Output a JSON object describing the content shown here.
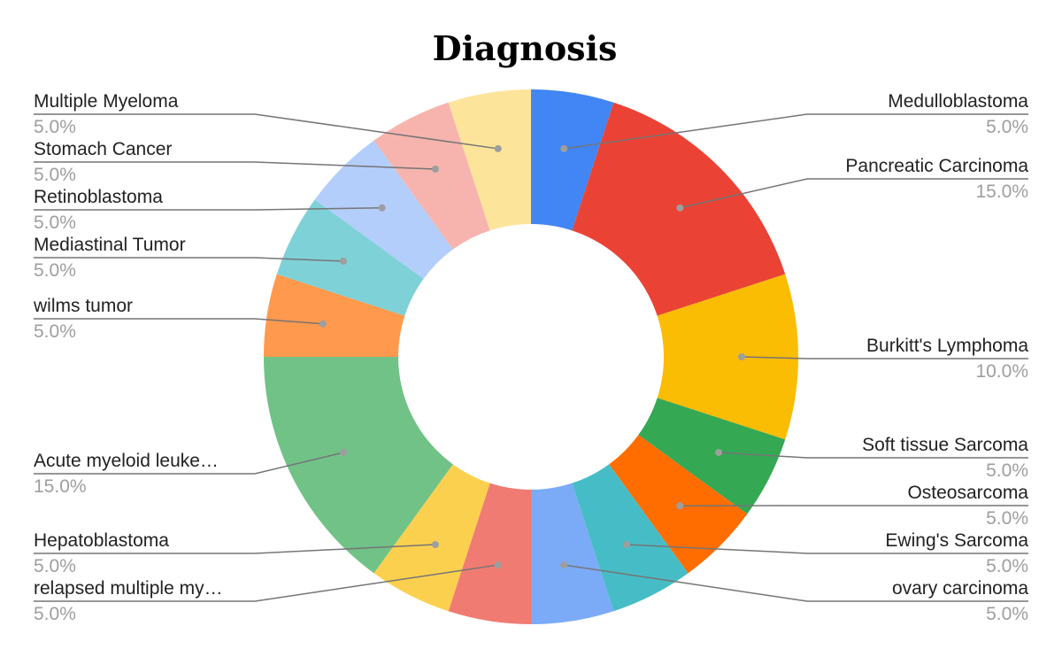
{
  "chart_data": {
    "type": "pie",
    "donut": true,
    "title": "Diagnosis",
    "slices": [
      {
        "label": "Medulloblastoma",
        "display": "Medulloblastoma",
        "value": 5.0,
        "pct_label": "5.0%",
        "color": "#4285f4"
      },
      {
        "label": "Pancreatic Carcinoma",
        "display": "Pancreatic Carcinoma",
        "value": 15.0,
        "pct_label": "15.0%",
        "color": "#ea4335"
      },
      {
        "label": "Burkitt's Lymphoma",
        "display": "Burkitt's Lymphoma",
        "value": 10.0,
        "pct_label": "10.0%",
        "color": "#fbbc04"
      },
      {
        "label": "Soft tissue Sarcoma",
        "display": "Soft tissue Sarcoma",
        "value": 5.0,
        "pct_label": "5.0%",
        "color": "#34a853"
      },
      {
        "label": "Osteosarcoma",
        "display": "Osteosarcoma",
        "value": 5.0,
        "pct_label": "5.0%",
        "color": "#ff6d01"
      },
      {
        "label": "Ewing's Sarcoma",
        "display": "Ewing's Sarcoma",
        "value": 5.0,
        "pct_label": "5.0%",
        "color": "#46bdc6"
      },
      {
        "label": "ovary carcinoma",
        "display": "ovary carcinoma",
        "value": 5.0,
        "pct_label": "5.0%",
        "color": "#7baaf7"
      },
      {
        "label": "relapsed multiple myeloma",
        "display": "relapsed multiple my…",
        "value": 5.0,
        "pct_label": "5.0%",
        "color": "#f07b72"
      },
      {
        "label": "Hepatoblastoma",
        "display": "Hepatoblastoma",
        "value": 5.0,
        "pct_label": "5.0%",
        "color": "#fcd04f"
      },
      {
        "label": "Acute myeloid leukemia",
        "display": "Acute myeloid leuke…",
        "value": 15.0,
        "pct_label": "15.0%",
        "color": "#71c287"
      },
      {
        "label": "wilms tumor",
        "display": "wilms tumor",
        "value": 5.0,
        "pct_label": "5.0%",
        "color": "#ff994d"
      },
      {
        "label": "Mediastinal Tumor",
        "display": "Mediastinal Tumor",
        "value": 5.0,
        "pct_label": "5.0%",
        "color": "#7ed1d7"
      },
      {
        "label": "Retinoblastoma",
        "display": "Retinoblastoma",
        "value": 5.0,
        "pct_label": "5.0%",
        "color": "#b3cefb"
      },
      {
        "label": "Stomach Cancer",
        "display": "Stomach Cancer",
        "value": 5.0,
        "pct_label": "5.0%",
        "color": "#f7b4ae"
      },
      {
        "label": "Multiple Myeloma",
        "display": "Multiple Myeloma",
        "value": 5.0,
        "pct_label": "5.0%",
        "color": "#fde49b"
      }
    ],
    "legend": "none"
  }
}
